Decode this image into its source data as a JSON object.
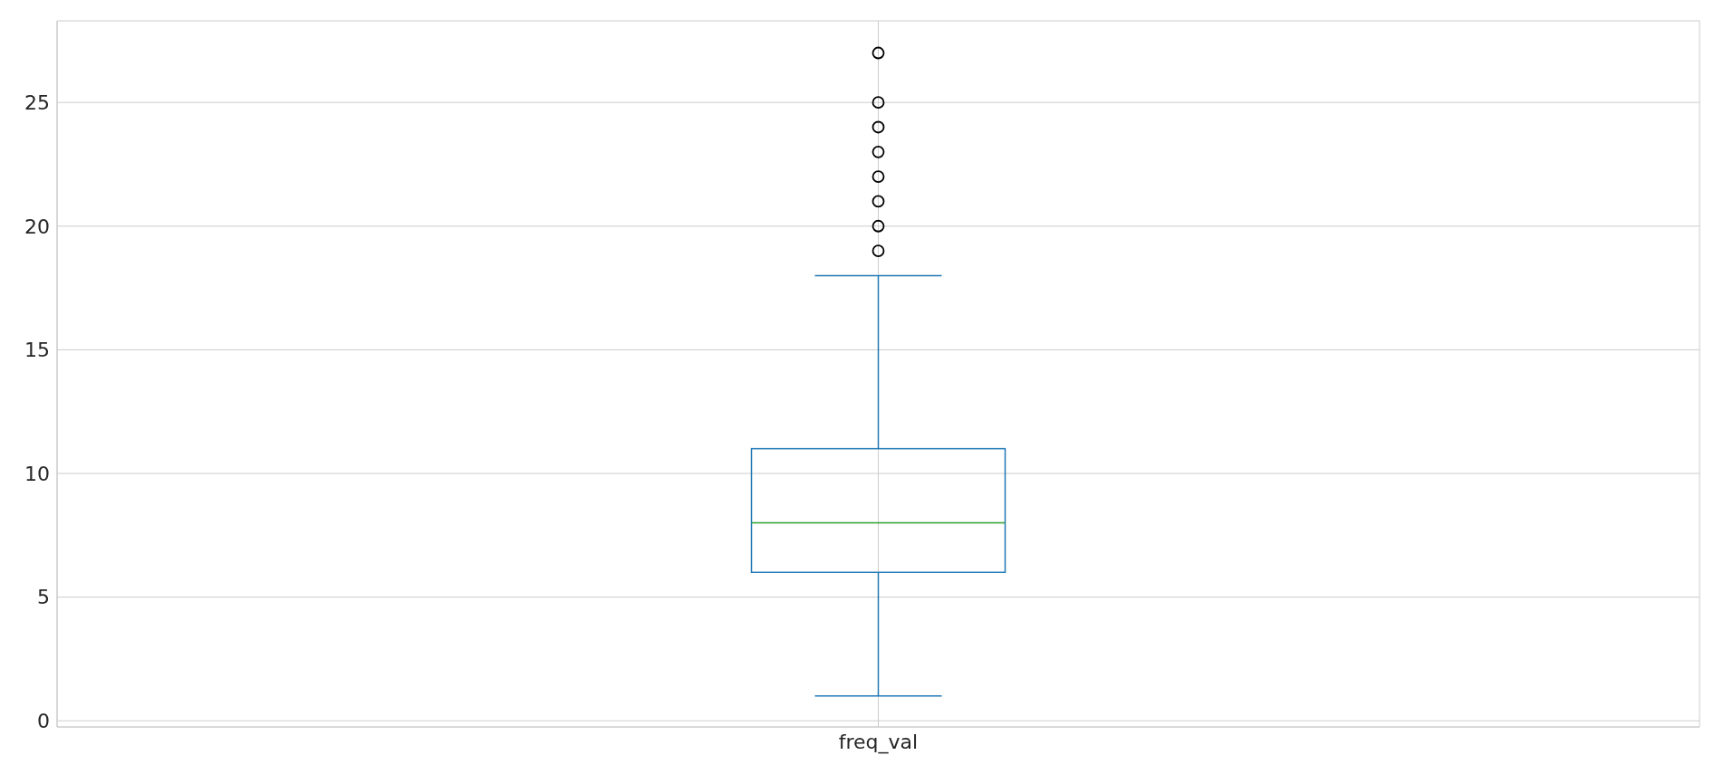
{
  "chart_data": {
    "type": "box",
    "categories": [
      "freq_val"
    ],
    "boxes": [
      {
        "low": 1,
        "q1": 6,
        "median": 8,
        "q3": 11,
        "high": 18,
        "outliers": [
          19,
          20,
          21,
          22,
          23,
          24,
          25,
          27
        ]
      }
    ],
    "color": "#1f77b4",
    "ylim": [
      -0.25,
      28.3
    ],
    "yticks": [
      0,
      5,
      10,
      15,
      20,
      25
    ],
    "grid": true
  }
}
